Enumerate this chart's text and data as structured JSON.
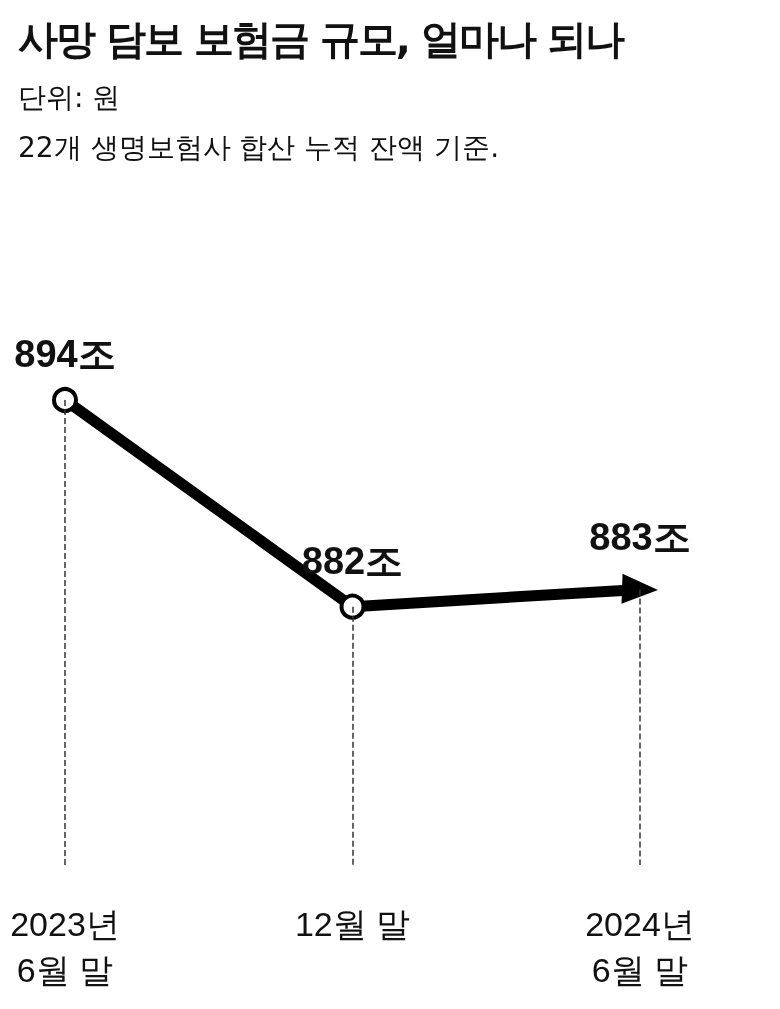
{
  "chart_data": {
    "type": "line",
    "title": "사망 담보 보험금 규모, 얼마나 되나",
    "subtitle": "단위: 원",
    "annotations": [
      "22개 생명보험사 합산 누적 잔액 기준."
    ],
    "categories": [
      "2023년\n6월 말",
      "12월 말",
      "2024년\n6월 말"
    ],
    "values": [
      894,
      882,
      883
    ],
    "value_labels": [
      "894조",
      "882조",
      "883조"
    ],
    "color": "#000000",
    "marker": "circle",
    "line_style": "solid",
    "grid": "x",
    "tick_labels": "x"
  }
}
